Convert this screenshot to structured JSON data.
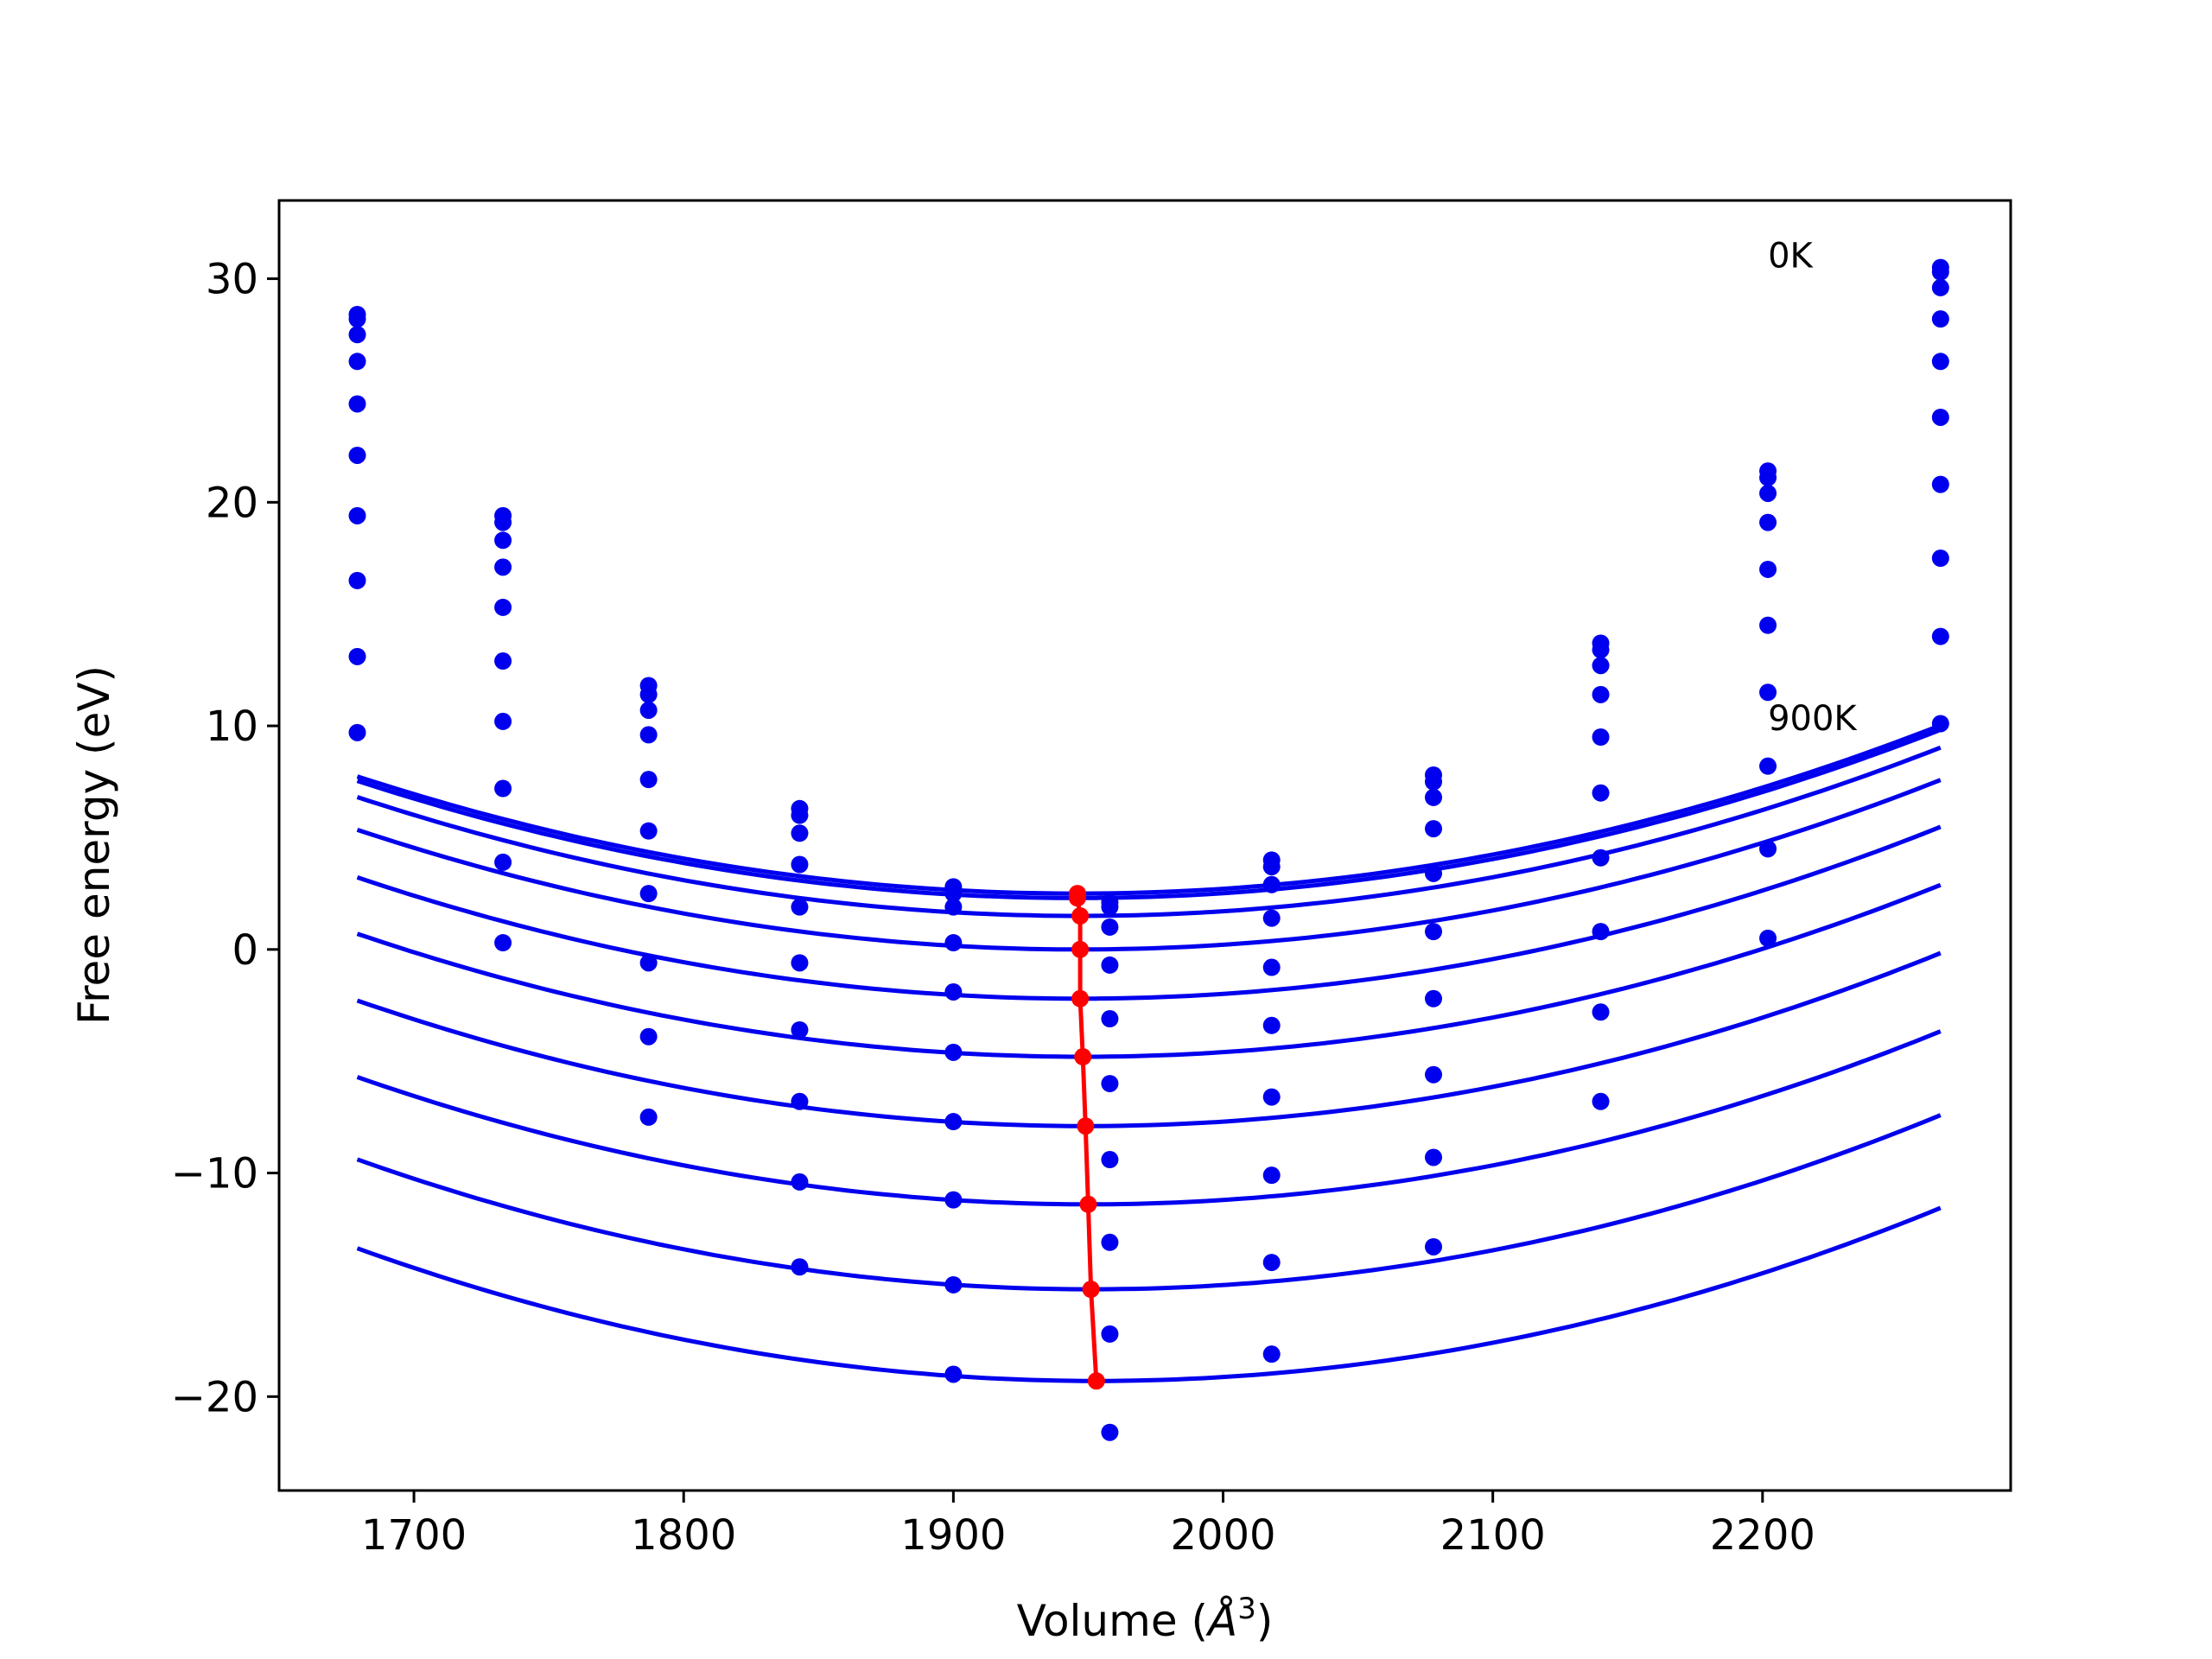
{
  "chart_data": {
    "type": "line",
    "title": "",
    "xlabel": "Volume (",
    "xlabel_unit": "Å",
    "xlabel_exp": "3",
    "xlabel_close": ")",
    "ylabel": "Free energy (eV)",
    "xlim": [
      1650,
      2292
    ],
    "ylim": [
      -24.2,
      33.5
    ],
    "xticks": [
      1700,
      1800,
      1900,
      2000,
      2100,
      2200
    ],
    "xtick_labels": [
      "1700",
      "1800",
      "1900",
      "2000",
      "2100",
      "2200"
    ],
    "yticks": [
      -20,
      -10,
      0,
      10,
      20,
      30
    ],
    "ytick_labels": [
      "−20",
      "−10",
      "0",
      "10",
      "20",
      "30"
    ],
    "grid": false,
    "colors": {
      "fit": "#0000ee",
      "points": "#0000ee",
      "minimum": "#ff0000"
    },
    "annotations": [
      {
        "text": "0K",
        "x": 2202,
        "y": 30.5
      },
      {
        "text": "900K",
        "x": 2202,
        "y": 9.8
      }
    ],
    "x": [
      1679,
      1733,
      1787,
      1843,
      1900,
      1958,
      2018,
      2078,
      2140,
      2202,
      2266
    ],
    "series": [
      {
        "values": [
          28.4,
          19.4,
          11.8,
          6.3,
          2.8,
          2.1,
          4.0,
          7.8,
          13.7,
          21.4,
          30.5
        ]
      },
      {
        "values": [
          28.2,
          19.1,
          11.4,
          6.0,
          2.5,
          1.9,
          3.7,
          7.5,
          13.4,
          21.1,
          30.3
        ]
      },
      {
        "values": [
          27.5,
          18.3,
          10.7,
          5.2,
          1.9,
          1.0,
          2.9,
          6.8,
          12.7,
          20.4,
          29.6
        ]
      },
      {
        "values": [
          26.3,
          17.1,
          9.6,
          3.8,
          0.3,
          -0.7,
          1.4,
          5.4,
          11.4,
          19.1,
          28.2
        ]
      },
      {
        "values": [
          24.4,
          15.3,
          7.6,
          1.9,
          -1.9,
          -3.1,
          -0.8,
          3.4,
          9.5,
          17.0,
          26.3
        ]
      },
      {
        "values": [
          22.1,
          12.9,
          5.3,
          -0.6,
          -4.6,
          -6.0,
          -3.4,
          0.8,
          7.0,
          14.5,
          23.8
        ]
      },
      {
        "values": [
          19.4,
          10.2,
          2.5,
          -3.6,
          -7.7,
          -9.4,
          -6.6,
          -2.2,
          4.1,
          11.5,
          20.8
        ]
      },
      {
        "values": [
          16.5,
          7.2,
          -0.6,
          -6.8,
          -11.2,
          -13.1,
          -10.1,
          -5.6,
          0.8,
          8.2,
          17.5
        ]
      },
      {
        "values": [
          13.1,
          3.9,
          -3.9,
          -10.4,
          -15.0,
          -17.2,
          -14.0,
          -9.3,
          -2.8,
          4.5,
          14.0
        ]
      },
      {
        "values": [
          9.7,
          0.3,
          -7.5,
          -14.2,
          -19.0,
          -21.6,
          -18.1,
          -13.3,
          -6.8,
          0.5,
          10.1
        ]
      }
    ],
    "fits": [
      {
        "x0": 1946,
        "y0": 2.5,
        "k": 7.35e-05
      },
      {
        "x0": 1946,
        "y0": 2.3,
        "k": 7.35e-05
      },
      {
        "x0": 1947,
        "y0": 1.5,
        "k": 7.4e-05
      },
      {
        "x0": 1947,
        "y0": 0.0,
        "k": 7.45e-05
      },
      {
        "x0": 1947,
        "y0": -2.2,
        "k": 7.55e-05
      },
      {
        "x0": 1948,
        "y0": -4.8,
        "k": 7.6e-05
      },
      {
        "x0": 1949,
        "y0": -7.9,
        "k": 7.7e-05
      },
      {
        "x0": 1950,
        "y0": -11.4,
        "k": 7.75e-05
      },
      {
        "x0": 1951,
        "y0": -15.2,
        "k": 7.85e-05
      },
      {
        "x0": 1953,
        "y0": -19.3,
        "k": 7.9e-05
      }
    ],
    "minima": {
      "x": [
        1946,
        1946,
        1947,
        1947,
        1947,
        1948,
        1949,
        1950,
        1951,
        1953
      ],
      "y": [
        2.5,
        2.3,
        1.5,
        0.0,
        -2.2,
        -4.8,
        -7.9,
        -11.4,
        -15.2,
        -19.3
      ]
    }
  }
}
